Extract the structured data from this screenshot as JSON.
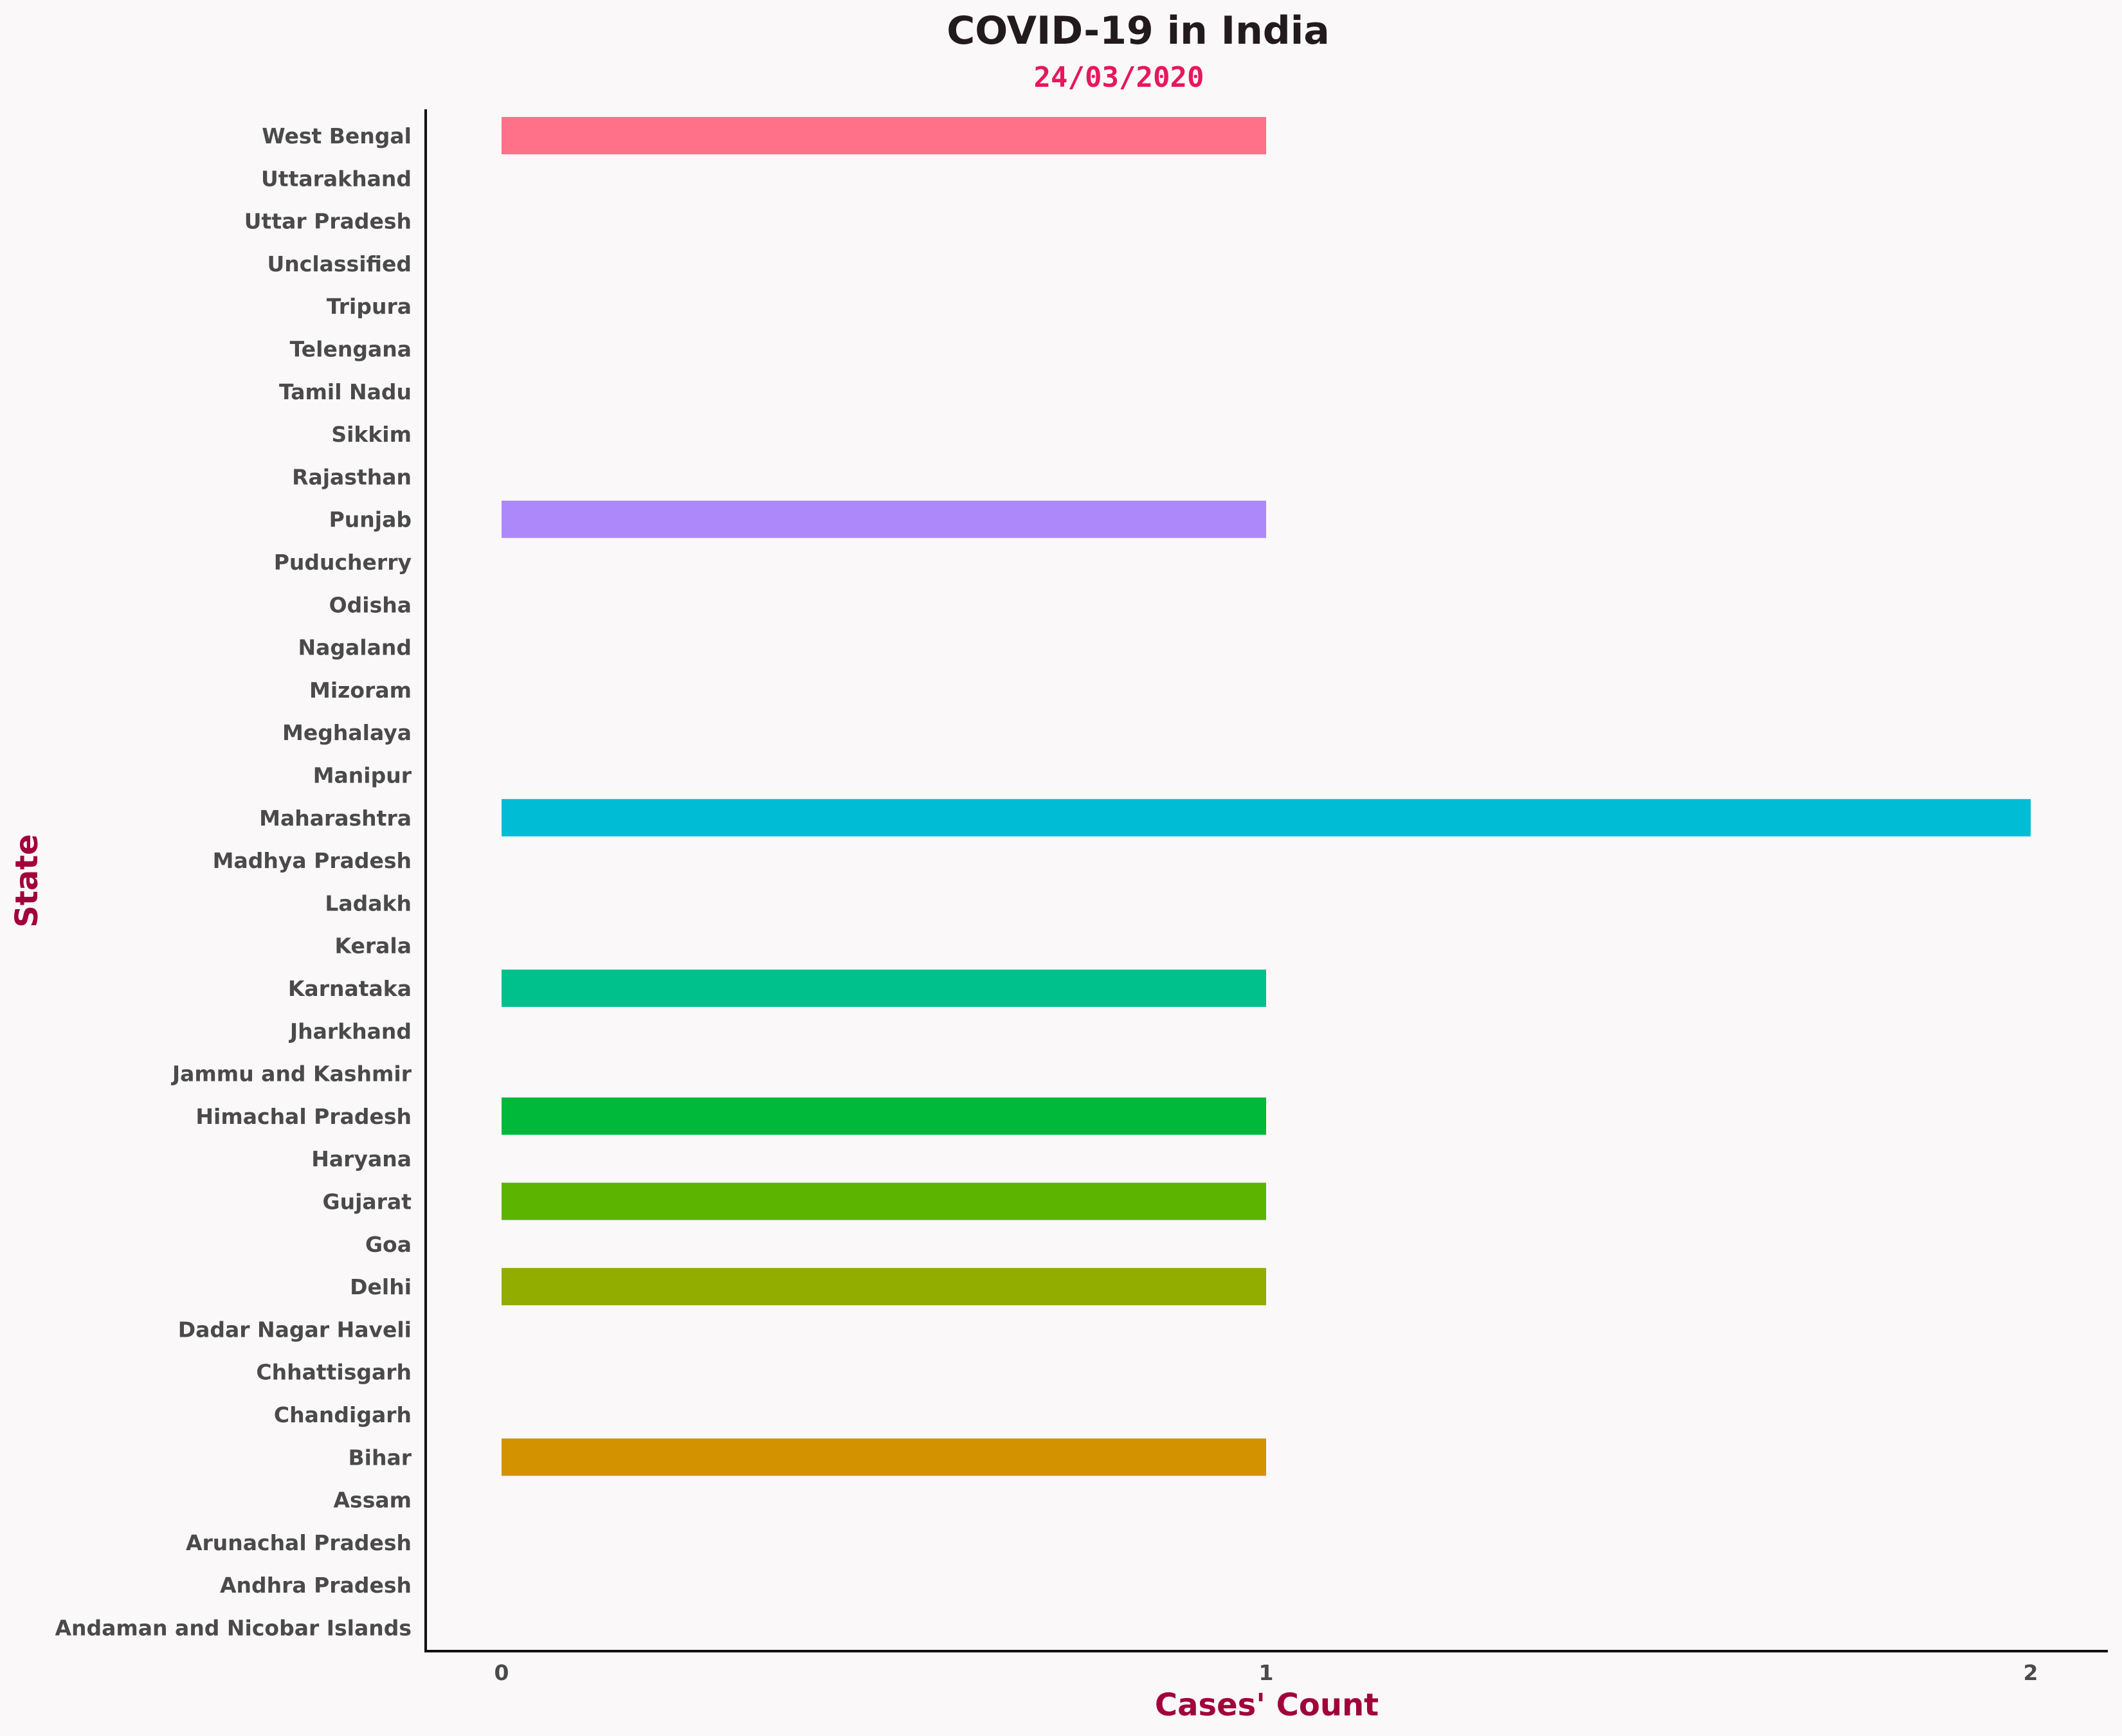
{
  "chart_data": {
    "type": "bar",
    "orientation": "horizontal",
    "title": "COVID-19 in India",
    "subtitle": "24/03/2020",
    "xlabel": "Cases' Count",
    "ylabel": "State",
    "xlim": [
      -0.1,
      2.1
    ],
    "xticks": [
      "0",
      "1",
      "2"
    ],
    "grid": false,
    "categories": [
      "Andaman and Nicobar Islands",
      "Andhra Pradesh",
      "Arunachal Pradesh",
      "Assam",
      "Bihar",
      "Chandigarh",
      "Chhattisgarh",
      "Dadar Nagar Haveli",
      "Delhi",
      "Goa",
      "Gujarat",
      "Haryana",
      "Himachal Pradesh",
      "Jammu and Kashmir",
      "Jharkhand",
      "Karnataka",
      "Kerala",
      "Ladakh",
      "Madhya Pradesh",
      "Maharashtra",
      "Manipur",
      "Meghalaya",
      "Mizoram",
      "Nagaland",
      "Odisha",
      "Puducherry",
      "Punjab",
      "Rajasthan",
      "Sikkim",
      "Tamil Nadu",
      "Telengana",
      "Tripura",
      "Unclassified",
      "Uttar Pradesh",
      "Uttarakhand",
      "West Bengal"
    ],
    "values": [
      0,
      0,
      0,
      0,
      1,
      0,
      0,
      0,
      1,
      0,
      1,
      0,
      1,
      0,
      0,
      1,
      0,
      0,
      0,
      2,
      0,
      0,
      0,
      0,
      0,
      0,
      1,
      0,
      0,
      0,
      0,
      0,
      0,
      0,
      0,
      1
    ],
    "colors": [
      "#f77189",
      "#f7754f",
      "#e7832f",
      "#dd8a30",
      "#d39200",
      "#c69a31",
      "#b69f31",
      "#a8a631",
      "#92ac00",
      "#7fb031",
      "#5cb300",
      "#35b65c",
      "#00b93a",
      "#33b87e",
      "#33bb97",
      "#00c08b",
      "#35b9ac",
      "#36b7b9",
      "#38b5c5",
      "#00bcd4",
      "#3aaee2",
      "#51a3ec",
      "#6e9bf4",
      "#8c94f4",
      "#a18df4",
      "#b085f4",
      "#ad88fa",
      "#c87ef0",
      "#d877e4",
      "#e472d8",
      "#f066c9",
      "#f561b9",
      "#f564a6",
      "#f66b94",
      "#f66f8c",
      "#ff7089"
    ]
  }
}
